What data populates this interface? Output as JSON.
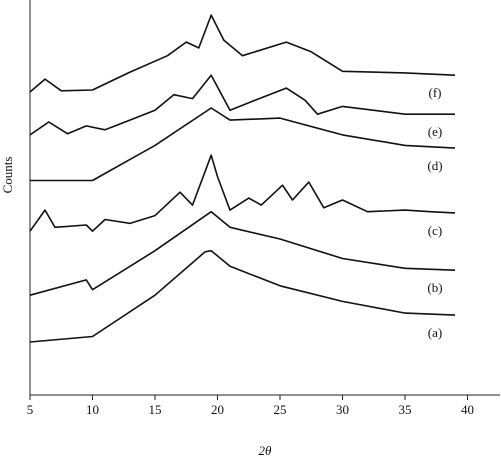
{
  "chart_data": {
    "type": "line",
    "xlabel": "2θ",
    "ylabel": "Counts",
    "xlim": [
      5,
      42.6
    ],
    "xticks": [
      5,
      10,
      15,
      20,
      25,
      30,
      35,
      40
    ],
    "ylim": [
      0,
      100
    ],
    "series": [
      {
        "name": "(a)",
        "color": "#111111",
        "x": [
          5,
          10,
          15,
          19,
          19.5,
          21,
          25,
          30,
          35,
          39
        ],
        "values": [
          13.6,
          15,
          25.6,
          36.7,
          37,
          33,
          28,
          24,
          21,
          20.5
        ]
      },
      {
        "name": "(b)",
        "color": "#111111",
        "x": [
          5,
          9.5,
          10,
          15,
          19.5,
          21,
          25,
          30,
          35,
          39
        ],
        "values": [
          25.6,
          29.5,
          27,
          37,
          47,
          43,
          40,
          35,
          32.5,
          32
        ]
      },
      {
        "name": "(c)",
        "color": "#111111",
        "x": [
          5,
          6.2,
          7,
          9.5,
          10,
          11,
          13,
          15,
          17,
          18,
          19.5,
          20,
          21,
          22.5,
          23.5,
          25.2,
          26,
          27.3,
          28.5,
          30,
          32,
          35,
          37,
          39
        ],
        "values": [
          42,
          47.4,
          43,
          43.6,
          42,
          45,
          44,
          46,
          52,
          48.7,
          61.5,
          56,
          47.4,
          50.5,
          48.7,
          53.8,
          50,
          54.6,
          48,
          50,
          47,
          47.4,
          47,
          46.7
        ]
      },
      {
        "name": "(d)",
        "color": "#111111",
        "x": [
          5,
          9,
          10,
          15,
          19.5,
          21,
          25,
          30,
          35,
          39
        ],
        "values": [
          55,
          55,
          55,
          64,
          73.6,
          70.5,
          71,
          66.7,
          64,
          63.3
        ]
      },
      {
        "name": "(e)",
        "color": "#111111",
        "x": [
          5,
          6.5,
          8,
          9.5,
          11,
          15,
          16.5,
          18,
          19.5,
          21,
          23,
          25.5,
          27,
          28,
          30,
          35,
          39
        ],
        "values": [
          66.7,
          70,
          67,
          69,
          68,
          73,
          77,
          76,
          82,
          73,
          75.6,
          78.7,
          75.6,
          72,
          74,
          72,
          72
        ]
      },
      {
        "name": "(f)",
        "color": "#111111",
        "x": [
          5,
          6.2,
          7.5,
          10,
          13,
          16,
          17.5,
          18.5,
          19.5,
          20.5,
          22,
          25.5,
          27.5,
          30,
          35,
          39
        ],
        "values": [
          77.7,
          81,
          78,
          78.2,
          82.8,
          87,
          90.5,
          89,
          97.4,
          91,
          87,
          90.5,
          88,
          83,
          82.6,
          82
        ]
      }
    ]
  }
}
